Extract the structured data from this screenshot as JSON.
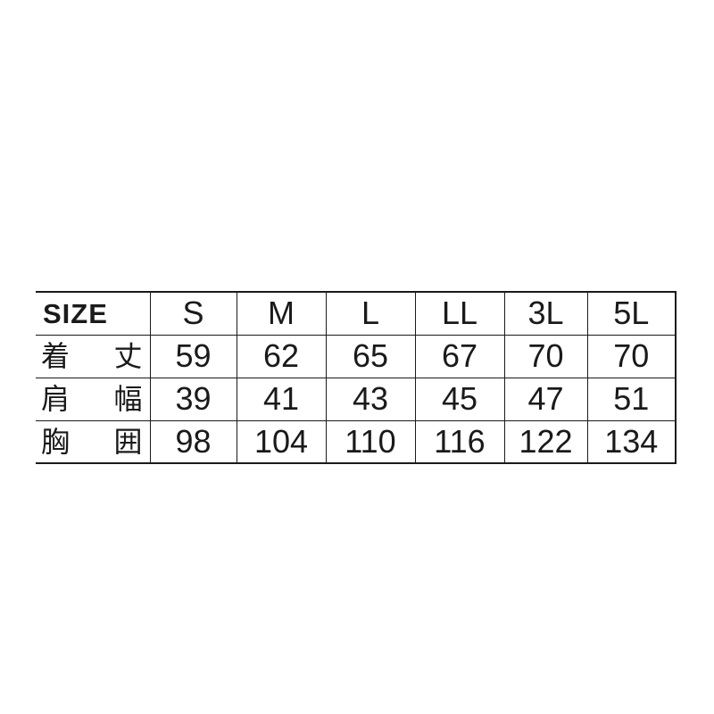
{
  "header": {
    "label": "SIZE",
    "sizes": [
      "S",
      "M",
      "L",
      "LL",
      "3L",
      "5L"
    ]
  },
  "rows": [
    {
      "label": [
        "着",
        "丈"
      ],
      "values": [
        "59",
        "62",
        "65",
        "67",
        "70",
        "70"
      ]
    },
    {
      "label": [
        "肩",
        "幅"
      ],
      "values": [
        "39",
        "41",
        "43",
        "45",
        "47",
        "51"
      ]
    },
    {
      "label": [
        "胸",
        "囲"
      ],
      "values": [
        "98",
        "104",
        "110",
        "116",
        "122",
        "134"
      ]
    }
  ]
}
